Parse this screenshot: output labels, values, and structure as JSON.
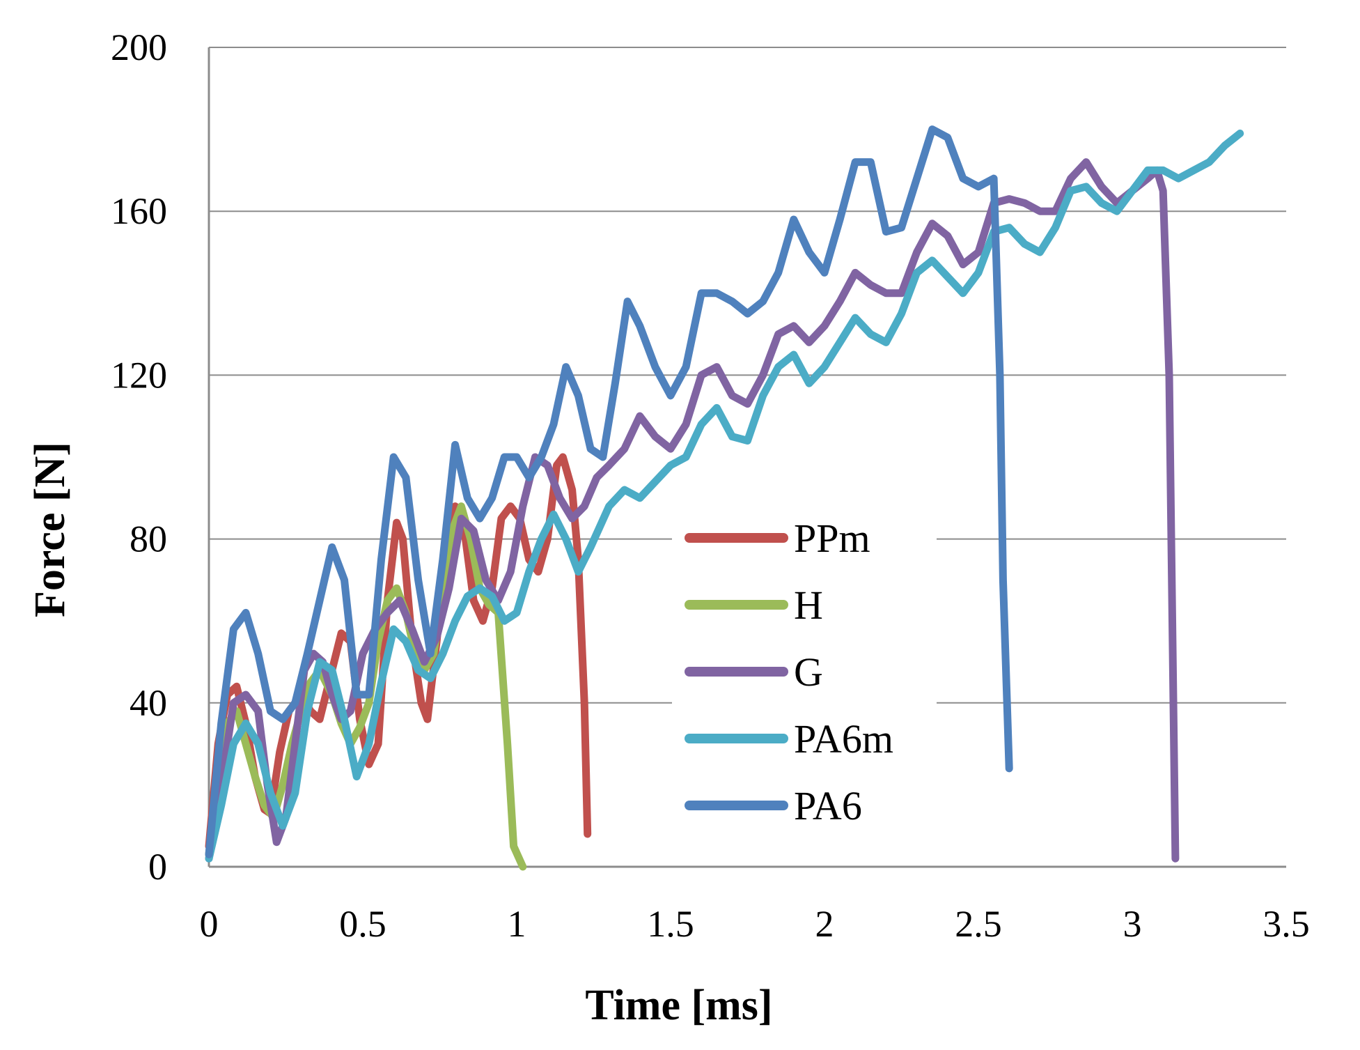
{
  "chart_data": {
    "type": "line",
    "title": "",
    "xlabel": "Time [ms]",
    "ylabel": "Force [N]",
    "xlim": [
      0,
      3.5
    ],
    "ylim": [
      0,
      200
    ],
    "x_ticks": [
      "0",
      "0.5",
      "1",
      "1.5",
      "2",
      "2.5",
      "3",
      "3.5"
    ],
    "y_ticks": [
      "0",
      "40",
      "80",
      "120",
      "160",
      "200"
    ],
    "grid": "horizontal",
    "legend_position": "center-right",
    "series": [
      {
        "name": "PPm",
        "color": "#C0504D",
        "points": [
          [
            0,
            5
          ],
          [
            0.03,
            30
          ],
          [
            0.06,
            42
          ],
          [
            0.09,
            44
          ],
          [
            0.12,
            35
          ],
          [
            0.15,
            22
          ],
          [
            0.18,
            14
          ],
          [
            0.2,
            13
          ],
          [
            0.23,
            28
          ],
          [
            0.26,
            38
          ],
          [
            0.3,
            42
          ],
          [
            0.33,
            38
          ],
          [
            0.36,
            36
          ],
          [
            0.4,
            48
          ],
          [
            0.43,
            57
          ],
          [
            0.46,
            55
          ],
          [
            0.49,
            36
          ],
          [
            0.52,
            25
          ],
          [
            0.55,
            30
          ],
          [
            0.58,
            65
          ],
          [
            0.61,
            84
          ],
          [
            0.63,
            80
          ],
          [
            0.66,
            55
          ],
          [
            0.69,
            40
          ],
          [
            0.71,
            36
          ],
          [
            0.74,
            55
          ],
          [
            0.77,
            78
          ],
          [
            0.8,
            88
          ],
          [
            0.83,
            82
          ],
          [
            0.86,
            65
          ],
          [
            0.89,
            60
          ],
          [
            0.92,
            68
          ],
          [
            0.95,
            85
          ],
          [
            0.98,
            88
          ],
          [
            1.01,
            85
          ],
          [
            1.04,
            75
          ],
          [
            1.07,
            72
          ],
          [
            1.1,
            80
          ],
          [
            1.13,
            98
          ],
          [
            1.15,
            100
          ],
          [
            1.18,
            92
          ],
          [
            1.2,
            75
          ],
          [
            1.22,
            40
          ],
          [
            1.23,
            8
          ]
        ]
      },
      {
        "name": "H",
        "color": "#9BBB59",
        "points": [
          [
            0,
            3
          ],
          [
            0.03,
            22
          ],
          [
            0.06,
            35
          ],
          [
            0.09,
            38
          ],
          [
            0.12,
            30
          ],
          [
            0.15,
            22
          ],
          [
            0.18,
            15
          ],
          [
            0.21,
            12
          ],
          [
            0.24,
            20
          ],
          [
            0.27,
            30
          ],
          [
            0.3,
            38
          ],
          [
            0.33,
            45
          ],
          [
            0.36,
            48
          ],
          [
            0.4,
            42
          ],
          [
            0.43,
            35
          ],
          [
            0.46,
            30
          ],
          [
            0.49,
            34
          ],
          [
            0.52,
            40
          ],
          [
            0.55,
            55
          ],
          [
            0.58,
            65
          ],
          [
            0.61,
            68
          ],
          [
            0.64,
            62
          ],
          [
            0.67,
            52
          ],
          [
            0.7,
            48
          ],
          [
            0.73,
            52
          ],
          [
            0.76,
            68
          ],
          [
            0.79,
            82
          ],
          [
            0.82,
            88
          ],
          [
            0.85,
            80
          ],
          [
            0.88,
            68
          ],
          [
            0.91,
            64
          ],
          [
            0.94,
            62
          ],
          [
            0.97,
            30
          ],
          [
            0.99,
            5
          ],
          [
            1.02,
            0
          ]
        ]
      },
      {
        "name": "G",
        "color": "#8064A2",
        "points": [
          [
            0,
            2
          ],
          [
            0.04,
            20
          ],
          [
            0.08,
            40
          ],
          [
            0.12,
            42
          ],
          [
            0.16,
            38
          ],
          [
            0.19,
            20
          ],
          [
            0.22,
            6
          ],
          [
            0.25,
            12
          ],
          [
            0.28,
            30
          ],
          [
            0.31,
            48
          ],
          [
            0.34,
            52
          ],
          [
            0.37,
            50
          ],
          [
            0.4,
            42
          ],
          [
            0.43,
            36
          ],
          [
            0.46,
            38
          ],
          [
            0.5,
            52
          ],
          [
            0.54,
            58
          ],
          [
            0.58,
            62
          ],
          [
            0.62,
            65
          ],
          [
            0.66,
            58
          ],
          [
            0.7,
            50
          ],
          [
            0.74,
            56
          ],
          [
            0.78,
            68
          ],
          [
            0.82,
            85
          ],
          [
            0.86,
            82
          ],
          [
            0.9,
            70
          ],
          [
            0.94,
            65
          ],
          [
            0.98,
            72
          ],
          [
            1.02,
            88
          ],
          [
            1.06,
            100
          ],
          [
            1.1,
            98
          ],
          [
            1.14,
            90
          ],
          [
            1.18,
            85
          ],
          [
            1.22,
            88
          ],
          [
            1.26,
            95
          ],
          [
            1.3,
            98
          ],
          [
            1.35,
            102
          ],
          [
            1.4,
            110
          ],
          [
            1.45,
            105
          ],
          [
            1.5,
            102
          ],
          [
            1.55,
            108
          ],
          [
            1.6,
            120
          ],
          [
            1.65,
            122
          ],
          [
            1.7,
            115
          ],
          [
            1.75,
            113
          ],
          [
            1.8,
            120
          ],
          [
            1.85,
            130
          ],
          [
            1.9,
            132
          ],
          [
            1.95,
            128
          ],
          [
            2.0,
            132
          ],
          [
            2.05,
            138
          ],
          [
            2.1,
            145
          ],
          [
            2.15,
            142
          ],
          [
            2.2,
            140
          ],
          [
            2.25,
            140
          ],
          [
            2.3,
            150
          ],
          [
            2.35,
            157
          ],
          [
            2.4,
            154
          ],
          [
            2.45,
            147
          ],
          [
            2.5,
            150
          ],
          [
            2.55,
            162
          ],
          [
            2.6,
            163
          ],
          [
            2.65,
            162
          ],
          [
            2.7,
            160
          ],
          [
            2.75,
            160
          ],
          [
            2.8,
            168
          ],
          [
            2.85,
            172
          ],
          [
            2.9,
            166
          ],
          [
            2.95,
            162
          ],
          [
            3.0,
            165
          ],
          [
            3.05,
            168
          ],
          [
            3.08,
            170
          ],
          [
            3.1,
            165
          ],
          [
            3.12,
            120
          ],
          [
            3.13,
            60
          ],
          [
            3.14,
            2
          ]
        ]
      },
      {
        "name": "PA6m",
        "color": "#4BACC6",
        "points": [
          [
            0,
            2
          ],
          [
            0.04,
            15
          ],
          [
            0.08,
            30
          ],
          [
            0.12,
            35
          ],
          [
            0.16,
            30
          ],
          [
            0.2,
            18
          ],
          [
            0.24,
            10
          ],
          [
            0.28,
            18
          ],
          [
            0.32,
            38
          ],
          [
            0.36,
            50
          ],
          [
            0.4,
            48
          ],
          [
            0.44,
            36
          ],
          [
            0.48,
            22
          ],
          [
            0.52,
            30
          ],
          [
            0.56,
            45
          ],
          [
            0.6,
            58
          ],
          [
            0.64,
            55
          ],
          [
            0.68,
            48
          ],
          [
            0.72,
            46
          ],
          [
            0.76,
            52
          ],
          [
            0.8,
            60
          ],
          [
            0.84,
            66
          ],
          [
            0.88,
            68
          ],
          [
            0.92,
            66
          ],
          [
            0.96,
            60
          ],
          [
            1.0,
            62
          ],
          [
            1.04,
            72
          ],
          [
            1.08,
            80
          ],
          [
            1.12,
            86
          ],
          [
            1.16,
            80
          ],
          [
            1.2,
            72
          ],
          [
            1.24,
            78
          ],
          [
            1.3,
            88
          ],
          [
            1.35,
            92
          ],
          [
            1.4,
            90
          ],
          [
            1.45,
            94
          ],
          [
            1.5,
            98
          ],
          [
            1.55,
            100
          ],
          [
            1.6,
            108
          ],
          [
            1.65,
            112
          ],
          [
            1.7,
            105
          ],
          [
            1.75,
            104
          ],
          [
            1.8,
            115
          ],
          [
            1.85,
            122
          ],
          [
            1.9,
            125
          ],
          [
            1.95,
            118
          ],
          [
            2.0,
            122
          ],
          [
            2.05,
            128
          ],
          [
            2.1,
            134
          ],
          [
            2.15,
            130
          ],
          [
            2.2,
            128
          ],
          [
            2.25,
            135
          ],
          [
            2.3,
            145
          ],
          [
            2.35,
            148
          ],
          [
            2.4,
            144
          ],
          [
            2.45,
            140
          ],
          [
            2.5,
            145
          ],
          [
            2.55,
            155
          ],
          [
            2.6,
            156
          ],
          [
            2.65,
            152
          ],
          [
            2.7,
            150
          ],
          [
            2.75,
            156
          ],
          [
            2.8,
            165
          ],
          [
            2.85,
            166
          ],
          [
            2.9,
            162
          ],
          [
            2.95,
            160
          ],
          [
            3.0,
            165
          ],
          [
            3.05,
            170
          ],
          [
            3.1,
            170
          ],
          [
            3.15,
            168
          ],
          [
            3.2,
            170
          ],
          [
            3.25,
            172
          ],
          [
            3.3,
            176
          ],
          [
            3.35,
            179
          ]
        ]
      },
      {
        "name": "PA6",
        "color": "#4F81BD",
        "points": [
          [
            0,
            3
          ],
          [
            0.04,
            35
          ],
          [
            0.08,
            58
          ],
          [
            0.12,
            62
          ],
          [
            0.16,
            52
          ],
          [
            0.2,
            38
          ],
          [
            0.24,
            36
          ],
          [
            0.28,
            40
          ],
          [
            0.32,
            52
          ],
          [
            0.36,
            65
          ],
          [
            0.4,
            78
          ],
          [
            0.44,
            70
          ],
          [
            0.48,
            42
          ],
          [
            0.52,
            42
          ],
          [
            0.56,
            75
          ],
          [
            0.6,
            100
          ],
          [
            0.64,
            95
          ],
          [
            0.68,
            70
          ],
          [
            0.72,
            52
          ],
          [
            0.76,
            75
          ],
          [
            0.8,
            103
          ],
          [
            0.84,
            90
          ],
          [
            0.88,
            85
          ],
          [
            0.92,
            90
          ],
          [
            0.96,
            100
          ],
          [
            1.0,
            100
          ],
          [
            1.04,
            95
          ],
          [
            1.08,
            100
          ],
          [
            1.12,
            108
          ],
          [
            1.16,
            122
          ],
          [
            1.2,
            115
          ],
          [
            1.24,
            102
          ],
          [
            1.28,
            100
          ],
          [
            1.32,
            118
          ],
          [
            1.36,
            138
          ],
          [
            1.4,
            132
          ],
          [
            1.45,
            122
          ],
          [
            1.5,
            115
          ],
          [
            1.55,
            122
          ],
          [
            1.6,
            140
          ],
          [
            1.65,
            140
          ],
          [
            1.7,
            138
          ],
          [
            1.75,
            135
          ],
          [
            1.8,
            138
          ],
          [
            1.85,
            145
          ],
          [
            1.9,
            158
          ],
          [
            1.95,
            150
          ],
          [
            2.0,
            145
          ],
          [
            2.05,
            158
          ],
          [
            2.1,
            172
          ],
          [
            2.15,
            172
          ],
          [
            2.2,
            155
          ],
          [
            2.25,
            156
          ],
          [
            2.3,
            168
          ],
          [
            2.35,
            180
          ],
          [
            2.4,
            178
          ],
          [
            2.45,
            168
          ],
          [
            2.5,
            166
          ],
          [
            2.55,
            168
          ],
          [
            2.57,
            120
          ],
          [
            2.58,
            70
          ],
          [
            2.6,
            24
          ]
        ]
      }
    ]
  }
}
